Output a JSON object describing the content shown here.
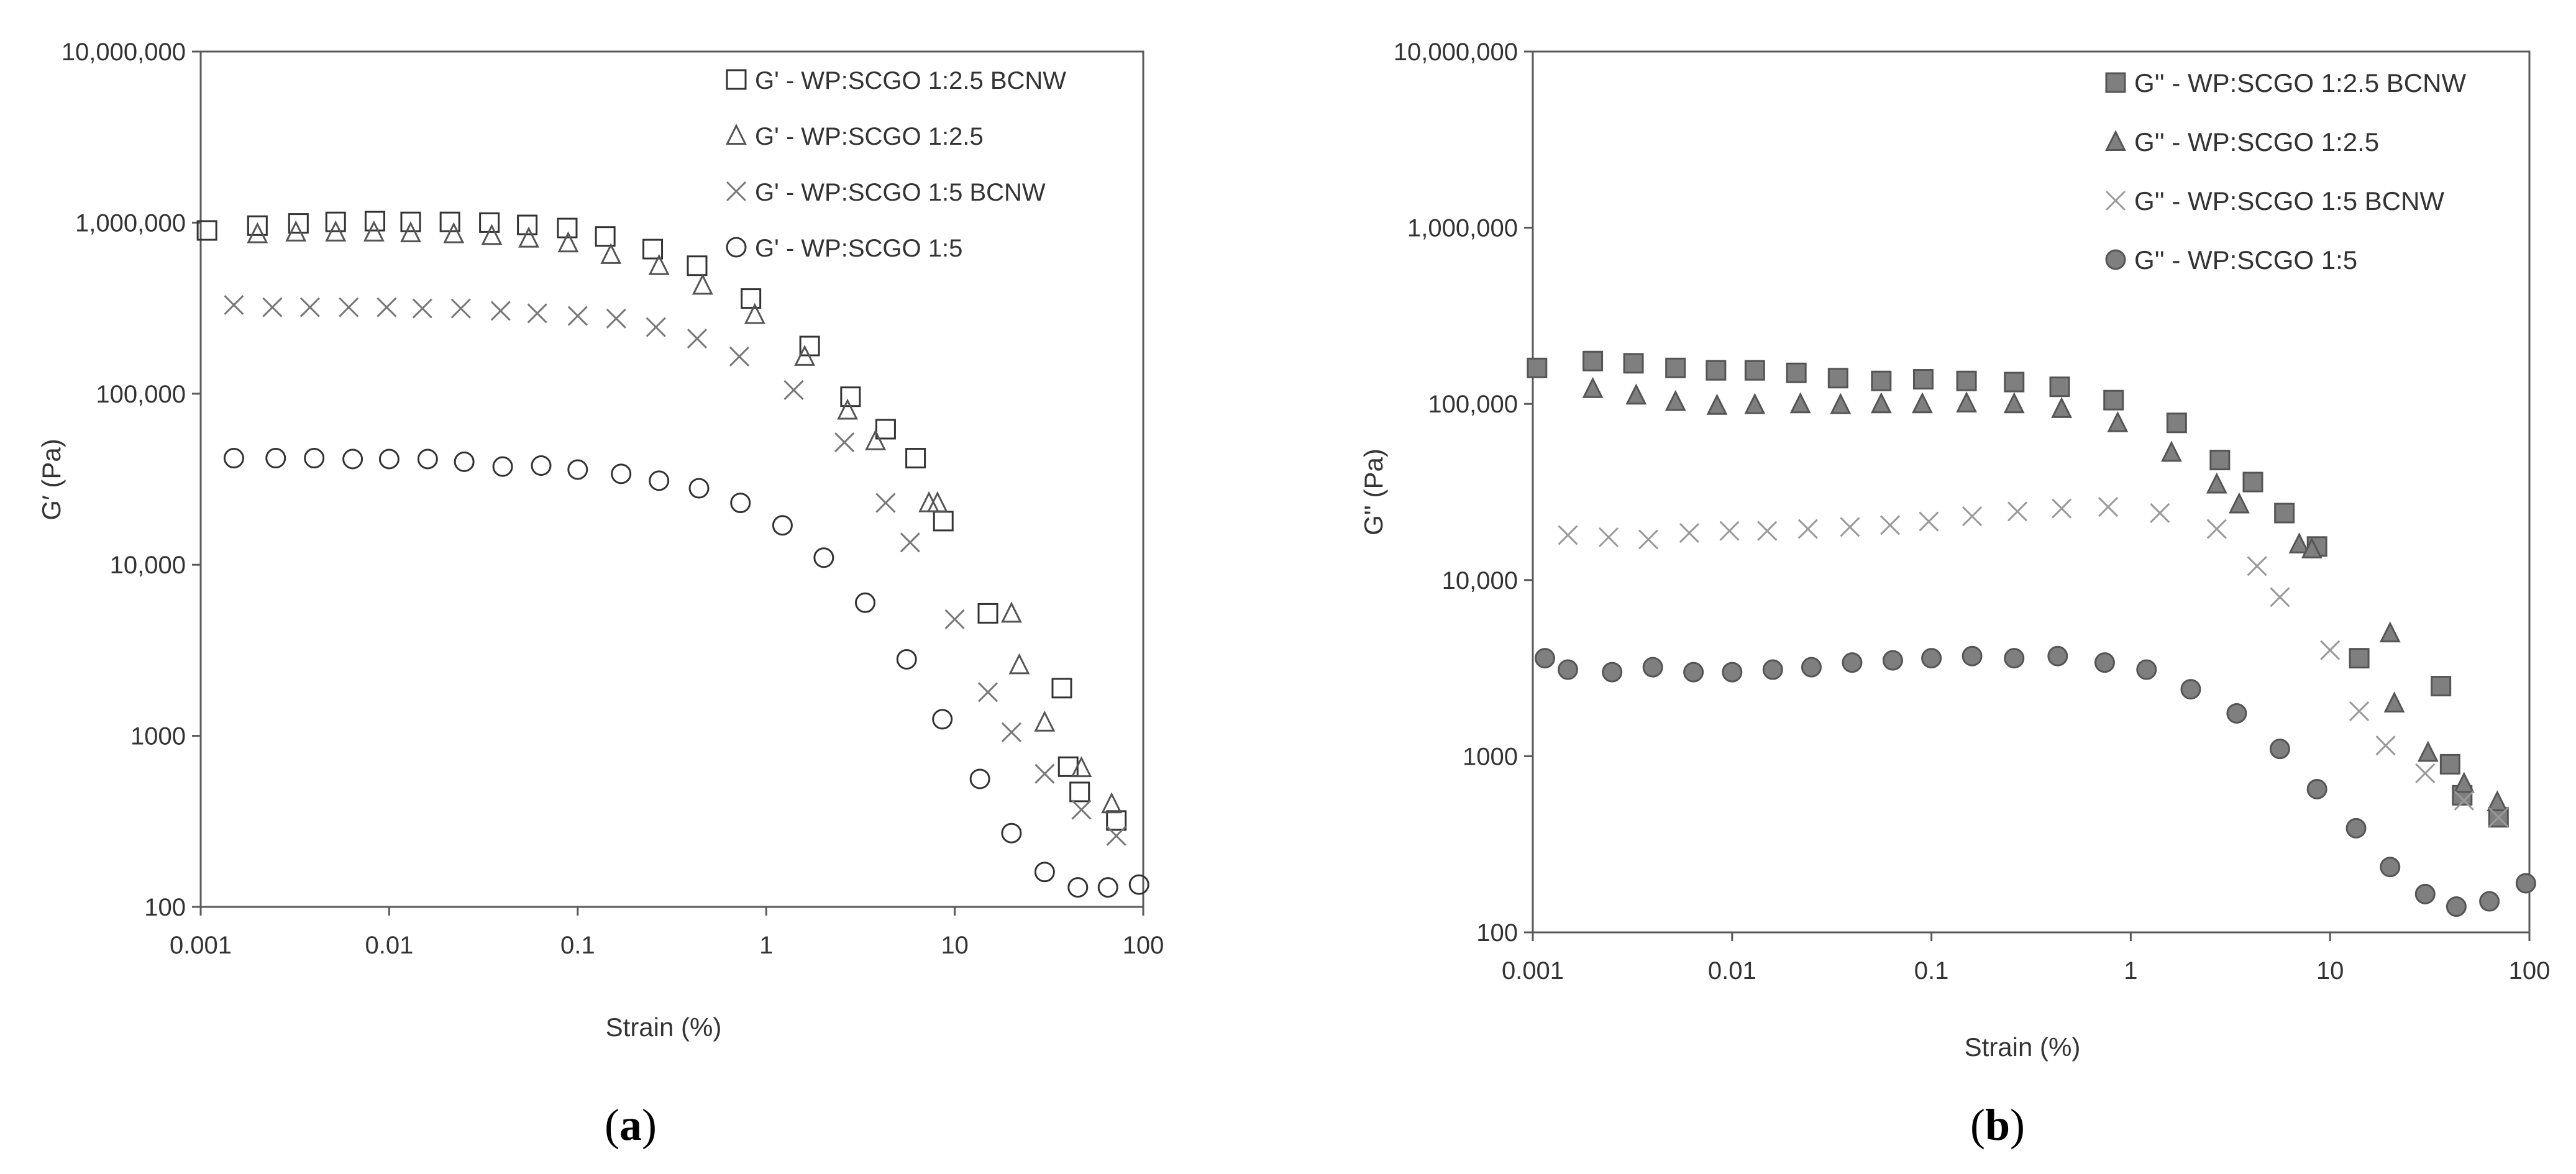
{
  "chart_data": [
    {
      "type": "scatter",
      "panel_label": "a",
      "xlabel": "Strain (%)",
      "ylabel": "G′ (Pa)",
      "xscale": "log",
      "yscale": "log",
      "xlim": [
        0.001,
        100
      ],
      "ylim": [
        100,
        10000000
      ],
      "xticks": [
        {
          "value": 0.001,
          "label": "0.001"
        },
        {
          "value": 0.01,
          "label": "0.01"
        },
        {
          "value": 0.1,
          "label": "0.1"
        },
        {
          "value": 1,
          "label": "1"
        },
        {
          "value": 10,
          "label": "10"
        },
        {
          "value": 100,
          "label": "100"
        }
      ],
      "yticks": [
        {
          "value": 100,
          "label": "100"
        },
        {
          "value": 1000,
          "label": "1000"
        },
        {
          "value": 10000,
          "label": "10,000"
        },
        {
          "value": 100000,
          "label": "100,000"
        },
        {
          "value": 1000000,
          "label": "1,000,000"
        },
        {
          "value": 10000000,
          "label": "10,000,000"
        }
      ],
      "grid": false,
      "legend_position": "top-right",
      "series": [
        {
          "name": "G' - WP:SCGO 1:2.5 BCNW",
          "marker": "square-open",
          "color": "#333333",
          "points": [
            [
              0.00108,
              900000
            ],
            [
              0.002,
              960000
            ],
            [
              0.0033,
              990000
            ],
            [
              0.0052,
              1010000
            ],
            [
              0.0084,
              1020000
            ],
            [
              0.013,
              1010000
            ],
            [
              0.021,
              1010000
            ],
            [
              0.034,
              1000000
            ],
            [
              0.054,
              970000
            ],
            [
              0.088,
              930000
            ],
            [
              0.14,
              830000
            ],
            [
              0.25,
              700000
            ],
            [
              0.43,
              560000
            ],
            [
              0.83,
              360000
            ],
            [
              1.7,
              190000
            ],
            [
              2.8,
              96000
            ],
            [
              4.3,
              62000
            ],
            [
              6.2,
              42000
            ],
            [
              8.7,
              18000
            ],
            [
              15,
              5200
            ],
            [
              37,
              1900
            ],
            [
              40,
              660
            ],
            [
              46,
              470
            ],
            [
              72,
              320
            ]
          ]
        },
        {
          "name": "G' - WP:SCGO 1:2.5",
          "marker": "triangle-open",
          "color": "#555555",
          "points": [
            [
              0.002,
              860000
            ],
            [
              0.0032,
              880000
            ],
            [
              0.0052,
              880000
            ],
            [
              0.0083,
              880000
            ],
            [
              0.013,
              870000
            ],
            [
              0.022,
              860000
            ],
            [
              0.035,
              840000
            ],
            [
              0.055,
              810000
            ],
            [
              0.089,
              760000
            ],
            [
              0.15,
              650000
            ],
            [
              0.27,
              560000
            ],
            [
              0.46,
              430000
            ],
            [
              0.87,
              290000
            ],
            [
              1.6,
              165000
            ],
            [
              2.7,
              80000
            ],
            [
              3.8,
              53000
            ],
            [
              7.3,
              23000
            ],
            [
              8.1,
              23000
            ],
            [
              20,
              5200
            ],
            [
              22,
              2600
            ],
            [
              30,
              1200
            ],
            [
              47,
              650
            ],
            [
              68,
              400
            ]
          ]
        },
        {
          "name": "G' - WP:SCGO 1:5 BCNW",
          "marker": "cross",
          "color": "#777777",
          "points": [
            [
              0.0015,
              330000
            ],
            [
              0.0024,
              320000
            ],
            [
              0.0038,
              320000
            ],
            [
              0.0061,
              320000
            ],
            [
              0.0097,
              320000
            ],
            [
              0.015,
              315000
            ],
            [
              0.024,
              315000
            ],
            [
              0.039,
              305000
            ],
            [
              0.061,
              295000
            ],
            [
              0.1,
              285000
            ],
            [
              0.16,
              275000
            ],
            [
              0.26,
              245000
            ],
            [
              0.43,
              210000
            ],
            [
              0.72,
              165000
            ],
            [
              1.4,
              105000
            ],
            [
              2.6,
              52000
            ],
            [
              4.3,
              23000
            ],
            [
              5.8,
              13500
            ],
            [
              10,
              4800
            ],
            [
              15,
              1800
            ],
            [
              20,
              1050
            ],
            [
              30,
              600
            ],
            [
              47,
              370
            ],
            [
              72,
              260
            ]
          ]
        },
        {
          "name": "G' - WP:SCGO 1:5",
          "marker": "circle-open",
          "color": "#333333",
          "points": [
            [
              0.0015,
              42000
            ],
            [
              0.0025,
              42000
            ],
            [
              0.004,
              42000
            ],
            [
              0.0064,
              41500
            ],
            [
              0.01,
              41500
            ],
            [
              0.016,
              41500
            ],
            [
              0.025,
              40000
            ],
            [
              0.04,
              37500
            ],
            [
              0.064,
              38000
            ],
            [
              0.1,
              36000
            ],
            [
              0.17,
              34000
            ],
            [
              0.27,
              31000
            ],
            [
              0.44,
              28000
            ],
            [
              0.73,
              23000
            ],
            [
              1.22,
              17000
            ],
            [
              2.02,
              11000
            ],
            [
              3.35,
              6000
            ],
            [
              5.56,
              2800
            ],
            [
              8.6,
              1250
            ],
            [
              13.6,
              560
            ],
            [
              20,
              270
            ],
            [
              30,
              160
            ],
            [
              45,
              130
            ],
            [
              65,
              130
            ],
            [
              95,
              135
            ]
          ]
        }
      ]
    },
    {
      "type": "scatter",
      "panel_label": "b",
      "xlabel": "Strain (%)",
      "ylabel": "G'' (Pa)",
      "xscale": "log",
      "yscale": "log",
      "xlim": [
        0.001,
        100
      ],
      "ylim": [
        100,
        10000000
      ],
      "xticks": [
        {
          "value": 0.001,
          "label": "0.001"
        },
        {
          "value": 0.01,
          "label": "0.01"
        },
        {
          "value": 0.1,
          "label": "0.1"
        },
        {
          "value": 1,
          "label": "1"
        },
        {
          "value": 10,
          "label": "10"
        },
        {
          "value": 100,
          "label": "100"
        }
      ],
      "yticks": [
        {
          "value": 100,
          "label": "100"
        },
        {
          "value": 1000,
          "label": "1000"
        },
        {
          "value": 10000,
          "label": "10,000"
        },
        {
          "value": 100000,
          "label": "100,000"
        },
        {
          "value": 1000000,
          "label": "1,000,000"
        },
        {
          "value": 10000000,
          "label": "10,000,000"
        }
      ],
      "grid": false,
      "legend_position": "top-right",
      "series": [
        {
          "name": "G'' - WP:SCGO 1:2.5 BCNW",
          "marker": "square-filled",
          "color": "#7f7f7f",
          "points": [
            [
              0.00105,
              160000
            ],
            [
              0.002,
              175000
            ],
            [
              0.0032,
              170000
            ],
            [
              0.0052,
              160000
            ],
            [
              0.0083,
              155000
            ],
            [
              0.013,
              155000
            ],
            [
              0.021,
              150000
            ],
            [
              0.034,
              140000
            ],
            [
              0.056,
              135000
            ],
            [
              0.091,
              138000
            ],
            [
              0.15,
              135000
            ],
            [
              0.26,
              133000
            ],
            [
              0.44,
              125000
            ],
            [
              0.82,
              105000
            ],
            [
              1.7,
              78000
            ],
            [
              2.8,
              48000
            ],
            [
              4.1,
              36000
            ],
            [
              5.9,
              24000
            ],
            [
              8.6,
              15500
            ],
            [
              14,
              3600
            ],
            [
              36,
              2500
            ],
            [
              40,
              900
            ],
            [
              46,
              600
            ],
            [
              70,
              450
            ]
          ]
        },
        {
          "name": "G'' - WP:SCGO 1:2.5",
          "marker": "triangle-filled",
          "color": "#7f7f7f",
          "points": [
            [
              0.002,
              122000
            ],
            [
              0.0033,
              112000
            ],
            [
              0.0052,
              103000
            ],
            [
              0.0084,
              98000
            ],
            [
              0.013,
              99000
            ],
            [
              0.022,
              100000
            ],
            [
              0.035,
              99000
            ],
            [
              0.056,
              100000
            ],
            [
              0.09,
              100000
            ],
            [
              0.15,
              101000
            ],
            [
              0.26,
              100000
            ],
            [
              0.45,
              94000
            ],
            [
              0.86,
              78000
            ],
            [
              1.6,
              53000
            ],
            [
              2.7,
              35000
            ],
            [
              3.5,
              27000
            ],
            [
              7.0,
              16000
            ],
            [
              8.1,
              15000
            ],
            [
              20,
              5000
            ],
            [
              21,
              2000
            ],
            [
              31,
              1050
            ],
            [
              47,
              700
            ],
            [
              69,
              550
            ]
          ]
        },
        {
          "name": "G'' - WP:SCGO 1:5 BCNW",
          "marker": "cross",
          "color": "#999999",
          "points": [
            [
              0.0015,
              18000
            ],
            [
              0.0024,
              17500
            ],
            [
              0.0038,
              17000
            ],
            [
              0.0061,
              18500
            ],
            [
              0.0097,
              19000
            ],
            [
              0.015,
              19000
            ],
            [
              0.024,
              19500
            ],
            [
              0.039,
              20000
            ],
            [
              0.062,
              20500
            ],
            [
              0.097,
              21500
            ],
            [
              0.16,
              23000
            ],
            [
              0.27,
              24500
            ],
            [
              0.45,
              25500
            ],
            [
              0.77,
              26000
            ],
            [
              1.4,
              24000
            ],
            [
              2.7,
              19500
            ],
            [
              4.3,
              12000
            ],
            [
              5.6,
              8000
            ],
            [
              10,
              4000
            ],
            [
              14,
              1800
            ],
            [
              19,
              1150
            ],
            [
              30,
              800
            ],
            [
              47,
              560
            ],
            [
              70,
              450
            ]
          ]
        },
        {
          "name": "G'' - WP:SCGO 1:5",
          "marker": "circle-filled",
          "color": "#7f7f7f",
          "points": [
            [
              0.00115,
              3600
            ],
            [
              0.0015,
              3100
            ],
            [
              0.0025,
              3000
            ],
            [
              0.004,
              3200
            ],
            [
              0.0064,
              3000
            ],
            [
              0.01,
              3000
            ],
            [
              0.016,
              3100
            ],
            [
              0.025,
              3200
            ],
            [
              0.04,
              3400
            ],
            [
              0.064,
              3500
            ],
            [
              0.1,
              3600
            ],
            [
              0.16,
              3700
            ],
            [
              0.26,
              3600
            ],
            [
              0.43,
              3700
            ],
            [
              0.74,
              3400
            ],
            [
              1.2,
              3100
            ],
            [
              2.0,
              2400
            ],
            [
              3.4,
              1750
            ],
            [
              5.6,
              1100
            ],
            [
              8.6,
              650
            ],
            [
              13.5,
              390
            ],
            [
              20,
              235
            ],
            [
              30,
              165
            ],
            [
              43,
              140
            ],
            [
              63,
              150
            ],
            [
              96,
              190
            ]
          ]
        }
      ]
    }
  ]
}
